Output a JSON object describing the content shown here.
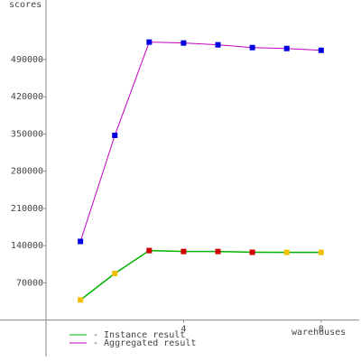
{
  "chart_data": {
    "type": "line",
    "y_label": "scores",
    "x_label": "warehouses",
    "x": [
      1,
      2,
      3,
      4,
      5,
      6,
      7,
      8
    ],
    "series": [
      {
        "name": "- Instance result",
        "color": "#00b000",
        "marker_colors": [
          "#f0c000",
          "#f0c000",
          "#d00000",
          "#d00000",
          "#d00000",
          "#d00000",
          "#f0c000",
          "#f0c000"
        ],
        "values": [
          37800,
          87700,
          130700,
          129000,
          129000,
          127500,
          127300,
          127300
        ]
      },
      {
        "name": "- Aggregated result",
        "color": "#c000c0",
        "marker_colors": [
          "#0000e0",
          "#0000e0",
          "#0000e0",
          "#0000e0",
          "#0000e0",
          "#0000e0",
          "#0000e0",
          "#0000e0"
        ],
        "values": [
          147900,
          347400,
          522800,
          521100,
          517700,
          512500,
          510800,
          507400
        ]
      }
    ],
    "xlim": [
      -1.34,
      9.16
    ],
    "ylim": [
      -77000,
      602000
    ],
    "xticks": [
      4,
      8
    ],
    "yticks": [
      70000,
      140000,
      210000,
      280000,
      350000,
      420000,
      490000
    ]
  }
}
